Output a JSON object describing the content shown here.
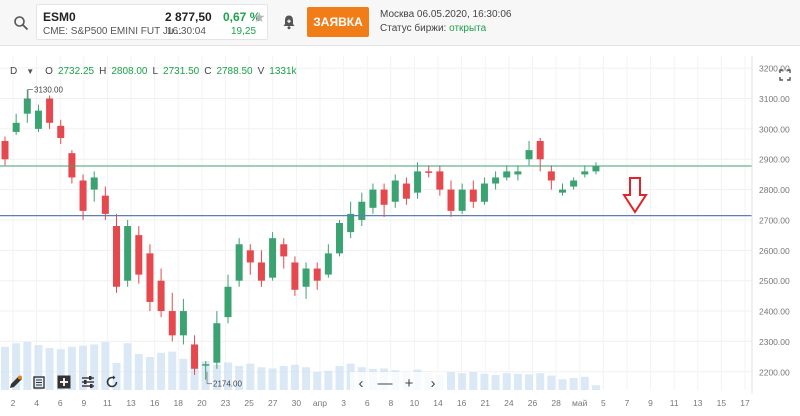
{
  "header": {
    "ticker": {
      "symbol": "ESM0",
      "description": "CME: S&P500 EMINI FUT Ju...",
      "price": "2 877,50",
      "time": "16:30:04",
      "change_pct": "0,67 %",
      "change_abs": "19,25"
    },
    "order_button_label": "ЗАЯВКА",
    "exchange": {
      "datetime_text": "Москва 06.05.2020, 16:30:06",
      "status_label": "Статус биржи: ",
      "status_value": "открыта"
    }
  },
  "ohlc": {
    "timeframe": "D",
    "open_label": "O",
    "open": "2732.25",
    "high_label": "H",
    "high": "2808.00",
    "low_label": "L",
    "low": "2731.50",
    "close_label": "C",
    "close": "2788.50",
    "volume_label": "V",
    "volume": "1331k"
  },
  "icons": {
    "search": "search-icon",
    "star": "star-icon",
    "bell": "bell-icon",
    "fullscreen": "fullscreen-icon",
    "drawing": "pencil-icon",
    "layers": "layers-icon",
    "add_indicator": "plus-square-icon",
    "settings": "sliders-icon",
    "reset": "reset-icon"
  },
  "zoom": {
    "prev": "‹",
    "minus": "—",
    "plus": "+",
    "next": "›"
  },
  "colors": {
    "up": "#3aa371",
    "down": "#e5484d",
    "volume": "#cfe1f3",
    "price_line": "#3aa371",
    "level_line": "#5b7fb8",
    "accent": "#f07d18"
  },
  "chart_data": {
    "type": "candlestick",
    "y_ticks": [
      "3200.00",
      "3100.00",
      "3000.00",
      "2900.00",
      "2800.00",
      "2700.00",
      "2600.00",
      "2500.00",
      "2400.00",
      "2300.00",
      "2200.00"
    ],
    "ylim": [
      2140,
      3240
    ],
    "x_ticks": [
      "2",
      "4",
      "6",
      "9",
      "11",
      "13",
      "16",
      "18",
      "20",
      "23",
      "25",
      "27",
      "30",
      "апр",
      "3",
      "6",
      "8",
      "10",
      "14",
      "16",
      "21",
      "24",
      "26",
      "28",
      "май",
      "5",
      "7",
      "9",
      "11",
      "13",
      "15",
      "17"
    ],
    "current_price_label": "2877.75",
    "current_price": 2877.75,
    "level_label": "2714.35",
    "level": 2714.35,
    "high_annotation": "3130.00",
    "high_value": 3130,
    "low_annotation": "2174.00",
    "low_value": 2174,
    "candles": [
      {
        "o": 2960,
        "c": 2900,
        "h": 2975,
        "l": 2880
      },
      {
        "o": 2990,
        "c": 3020,
        "h": 3050,
        "l": 2980
      },
      {
        "o": 3050,
        "c": 3100,
        "h": 3130,
        "l": 3020
      },
      {
        "o": 3000,
        "c": 3060,
        "h": 3080,
        "l": 2990
      },
      {
        "o": 3100,
        "c": 3020,
        "h": 3110,
        "l": 3000
      },
      {
        "o": 3010,
        "c": 2970,
        "h": 3030,
        "l": 2950
      },
      {
        "o": 2920,
        "c": 2840,
        "h": 2930,
        "l": 2820
      },
      {
        "o": 2830,
        "c": 2730,
        "h": 2850,
        "l": 2700
      },
      {
        "o": 2800,
        "c": 2840,
        "h": 2860,
        "l": 2760
      },
      {
        "o": 2780,
        "c": 2720,
        "h": 2810,
        "l": 2700
      },
      {
        "o": 2680,
        "c": 2480,
        "h": 2720,
        "l": 2460
      },
      {
        "o": 2500,
        "c": 2680,
        "h": 2700,
        "l": 2480
      },
      {
        "o": 2650,
        "c": 2520,
        "h": 2680,
        "l": 2490
      },
      {
        "o": 2590,
        "c": 2430,
        "h": 2620,
        "l": 2400
      },
      {
        "o": 2500,
        "c": 2400,
        "h": 2540,
        "l": 2380
      },
      {
        "o": 2400,
        "c": 2320,
        "h": 2460,
        "l": 2300
      },
      {
        "o": 2320,
        "c": 2400,
        "h": 2440,
        "l": 2290
      },
      {
        "o": 2290,
        "c": 2210,
        "h": 2320,
        "l": 2190
      },
      {
        "o": 2220,
        "c": 2225,
        "h": 2235,
        "l": 2174
      },
      {
        "o": 2230,
        "c": 2360,
        "h": 2400,
        "l": 2210
      },
      {
        "o": 2380,
        "c": 2480,
        "h": 2520,
        "l": 2360
      },
      {
        "o": 2500,
        "c": 2620,
        "h": 2640,
        "l": 2480
      },
      {
        "o": 2600,
        "c": 2560,
        "h": 2620,
        "l": 2520
      },
      {
        "o": 2560,
        "c": 2500,
        "h": 2600,
        "l": 2480
      },
      {
        "o": 2510,
        "c": 2640,
        "h": 2660,
        "l": 2500
      },
      {
        "o": 2620,
        "c": 2580,
        "h": 2640,
        "l": 2540
      },
      {
        "o": 2560,
        "c": 2470,
        "h": 2580,
        "l": 2450
      },
      {
        "o": 2480,
        "c": 2540,
        "h": 2560,
        "l": 2440
      },
      {
        "o": 2540,
        "c": 2500,
        "h": 2560,
        "l": 2470
      },
      {
        "o": 2520,
        "c": 2590,
        "h": 2620,
        "l": 2510
      },
      {
        "o": 2590,
        "c": 2690,
        "h": 2700,
        "l": 2580
      },
      {
        "o": 2660,
        "c": 2720,
        "h": 2760,
        "l": 2640
      },
      {
        "o": 2700,
        "c": 2760,
        "h": 2790,
        "l": 2680
      },
      {
        "o": 2740,
        "c": 2800,
        "h": 2820,
        "l": 2720
      },
      {
        "o": 2800,
        "c": 2750,
        "h": 2820,
        "l": 2710
      },
      {
        "o": 2760,
        "c": 2830,
        "h": 2850,
        "l": 2740
      },
      {
        "o": 2820,
        "c": 2770,
        "h": 2840,
        "l": 2750
      },
      {
        "o": 2790,
        "c": 2860,
        "h": 2890,
        "l": 2770
      },
      {
        "o": 2860,
        "c": 2855,
        "h": 2880,
        "l": 2840
      },
      {
        "o": 2860,
        "c": 2800,
        "h": 2880,
        "l": 2780
      },
      {
        "o": 2800,
        "c": 2730,
        "h": 2830,
        "l": 2710
      },
      {
        "o": 2730,
        "c": 2800,
        "h": 2820,
        "l": 2720
      },
      {
        "o": 2800,
        "c": 2760,
        "h": 2830,
        "l": 2740
      },
      {
        "o": 2760,
        "c": 2820,
        "h": 2840,
        "l": 2750
      },
      {
        "o": 2820,
        "c": 2840,
        "h": 2860,
        "l": 2800
      },
      {
        "o": 2840,
        "c": 2860,
        "h": 2880,
        "l": 2830
      },
      {
        "o": 2850,
        "c": 2860,
        "h": 2880,
        "l": 2830
      },
      {
        "o": 2900,
        "c": 2930,
        "h": 2960,
        "l": 2880
      },
      {
        "o": 2960,
        "c": 2900,
        "h": 2970,
        "l": 2860
      },
      {
        "o": 2860,
        "c": 2830,
        "h": 2880,
        "l": 2800
      },
      {
        "o": 2790,
        "c": 2800,
        "h": 2820,
        "l": 2780
      },
      {
        "o": 2810,
        "c": 2830,
        "h": 2840,
        "l": 2800
      },
      {
        "o": 2850,
        "c": 2860,
        "h": 2880,
        "l": 2840
      },
      {
        "o": 2860,
        "c": 2877,
        "h": 2890,
        "l": 2850
      }
    ],
    "volume": [
      0.72,
      0.78,
      0.8,
      0.75,
      0.7,
      0.68,
      0.72,
      0.74,
      0.76,
      0.8,
      0.45,
      0.78,
      0.6,
      0.55,
      0.62,
      0.64,
      0.52,
      0.56,
      0.48,
      0.42,
      0.46,
      0.4,
      0.44,
      0.38,
      0.36,
      0.4,
      0.42,
      0.38,
      0.3,
      0.32,
      0.4,
      0.44,
      0.38,
      0.35,
      0.36,
      0.33,
      0.3,
      0.34,
      0.28,
      0.26,
      0.3,
      0.28,
      0.3,
      0.27,
      0.25,
      0.28,
      0.27,
      0.26,
      0.28,
      0.24,
      0.18,
      0.2,
      0.22,
      0.08
    ]
  }
}
